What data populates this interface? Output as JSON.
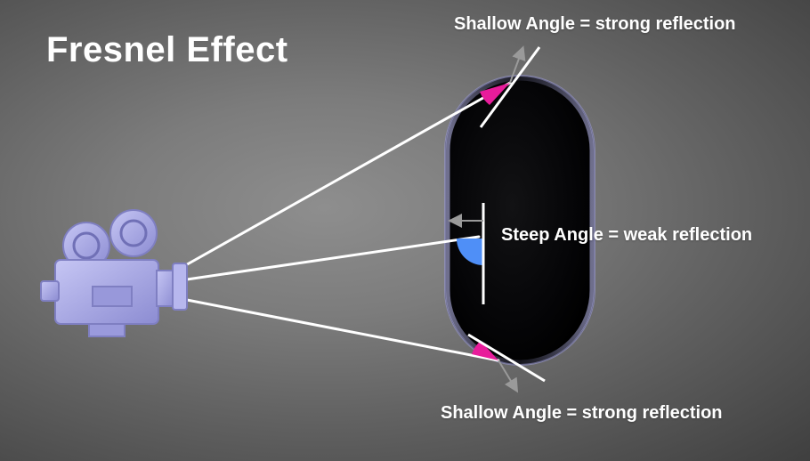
{
  "slide": {
    "title": "Fresnel Effect",
    "labels": {
      "shallow_top": "Shallow Angle = strong reflection",
      "steep": "Steep Angle = weak reflection",
      "shallow_bottom": "Shallow Angle = strong reflection"
    },
    "icons": {
      "camera": "movie-camera-icon",
      "object": "capsule-object"
    },
    "colors": {
      "shallow_angle_fill": "#e81c9b",
      "steep_angle_fill": "#4f8ff7",
      "ray": "#ffffff",
      "capsule": "#050507",
      "camera_body": "#a9a9e6"
    }
  }
}
